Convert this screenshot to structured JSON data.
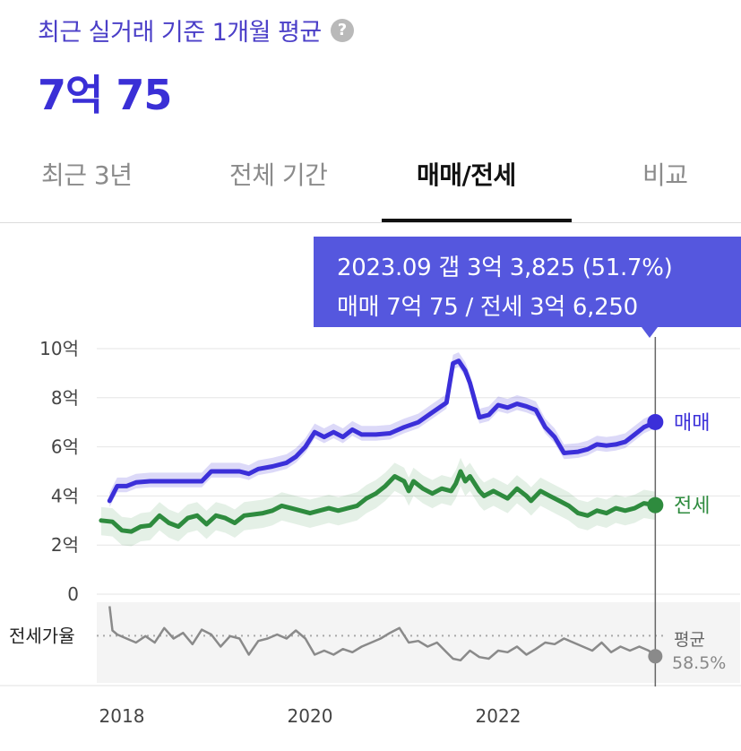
{
  "header": {
    "title": "최근 실거래 기준 1개월 평균",
    "help_icon": "help-circle-icon",
    "price": "7억 75"
  },
  "tabs": [
    {
      "label": "최근 3년",
      "active": false
    },
    {
      "label": "전체 기간",
      "active": false
    },
    {
      "label": "매매/전세",
      "active": true
    },
    {
      "label": "비교",
      "active": false
    }
  ],
  "tooltip": {
    "line1": "2023.09  갭 3억 3,825 (51.7%)",
    "line2": "매매 7억 75 / 전세 3억 6,250"
  },
  "colors": {
    "sale": "#3b2fd9",
    "jeonse": "#2e8b3e",
    "ratio": "#8a8a8a",
    "accent": "#5557de"
  },
  "chart_data": {
    "type": "line",
    "yticks": [
      "10억",
      "8억",
      "6억",
      "4억",
      "2억",
      "0"
    ],
    "ytick_values": [
      10,
      8,
      6,
      4,
      2,
      0
    ],
    "xticks": [
      "2018",
      "2020",
      "2022"
    ],
    "ylim": [
      0,
      10
    ],
    "xlim": [
      2017.85,
      2023.75
    ],
    "series": [
      {
        "name": "매매",
        "color": "#3b2fd9",
        "points": [
          [
            2017.87,
            3.8
          ],
          [
            2017.95,
            4.4
          ],
          [
            2018.05,
            4.4
          ],
          [
            2018.15,
            4.55
          ],
          [
            2018.3,
            4.6
          ],
          [
            2018.5,
            4.6
          ],
          [
            2018.7,
            4.6
          ],
          [
            2018.85,
            4.6
          ],
          [
            2018.95,
            5.0
          ],
          [
            2019.1,
            5.0
          ],
          [
            2019.25,
            5.0
          ],
          [
            2019.35,
            4.9
          ],
          [
            2019.45,
            5.1
          ],
          [
            2019.6,
            5.2
          ],
          [
            2019.75,
            5.35
          ],
          [
            2019.85,
            5.6
          ],
          [
            2019.95,
            6.0
          ],
          [
            2020.05,
            6.6
          ],
          [
            2020.15,
            6.4
          ],
          [
            2020.25,
            6.6
          ],
          [
            2020.35,
            6.4
          ],
          [
            2020.45,
            6.7
          ],
          [
            2020.55,
            6.5
          ],
          [
            2020.7,
            6.5
          ],
          [
            2020.85,
            6.55
          ],
          [
            2021.0,
            6.8
          ],
          [
            2021.15,
            7.0
          ],
          [
            2021.3,
            7.4
          ],
          [
            2021.45,
            7.8
          ],
          [
            2021.52,
            9.4
          ],
          [
            2021.58,
            9.5
          ],
          [
            2021.65,
            9.1
          ],
          [
            2021.7,
            8.6
          ],
          [
            2021.8,
            7.2
          ],
          [
            2021.9,
            7.3
          ],
          [
            2022.0,
            7.7
          ],
          [
            2022.1,
            7.6
          ],
          [
            2022.2,
            7.75
          ],
          [
            2022.3,
            7.65
          ],
          [
            2022.4,
            7.5
          ],
          [
            2022.5,
            6.8
          ],
          [
            2022.6,
            6.4
          ],
          [
            2022.7,
            5.75
          ],
          [
            2022.85,
            5.8
          ],
          [
            2022.95,
            5.9
          ],
          [
            2023.05,
            6.1
          ],
          [
            2023.15,
            6.05
          ],
          [
            2023.25,
            6.1
          ],
          [
            2023.35,
            6.2
          ],
          [
            2023.45,
            6.5
          ],
          [
            2023.55,
            6.8
          ],
          [
            2023.67,
            7.0075
          ]
        ],
        "end_label": "매매"
      },
      {
        "name": "전세",
        "color": "#2e8b3e",
        "points": [
          [
            2017.78,
            3.0
          ],
          [
            2017.9,
            2.95
          ],
          [
            2018.0,
            2.6
          ],
          [
            2018.1,
            2.55
          ],
          [
            2018.2,
            2.75
          ],
          [
            2018.3,
            2.8
          ],
          [
            2018.4,
            3.2
          ],
          [
            2018.5,
            2.9
          ],
          [
            2018.6,
            2.75
          ],
          [
            2018.7,
            3.1
          ],
          [
            2018.8,
            3.2
          ],
          [
            2018.9,
            2.85
          ],
          [
            2019.0,
            3.2
          ],
          [
            2019.1,
            3.1
          ],
          [
            2019.2,
            2.9
          ],
          [
            2019.3,
            3.2
          ],
          [
            2019.4,
            3.25
          ],
          [
            2019.5,
            3.3
          ],
          [
            2019.6,
            3.4
          ],
          [
            2019.7,
            3.6
          ],
          [
            2019.8,
            3.5
          ],
          [
            2019.9,
            3.4
          ],
          [
            2020.0,
            3.3
          ],
          [
            2020.1,
            3.4
          ],
          [
            2020.2,
            3.5
          ],
          [
            2020.3,
            3.4
          ],
          [
            2020.4,
            3.5
          ],
          [
            2020.5,
            3.6
          ],
          [
            2020.6,
            3.9
          ],
          [
            2020.7,
            4.1
          ],
          [
            2020.8,
            4.4
          ],
          [
            2020.9,
            4.8
          ],
          [
            2021.0,
            4.6
          ],
          [
            2021.05,
            4.2
          ],
          [
            2021.1,
            4.6
          ],
          [
            2021.2,
            4.3
          ],
          [
            2021.3,
            4.1
          ],
          [
            2021.4,
            4.3
          ],
          [
            2021.5,
            4.2
          ],
          [
            2021.55,
            4.5
          ],
          [
            2021.6,
            5.0
          ],
          [
            2021.65,
            4.6
          ],
          [
            2021.7,
            4.8
          ],
          [
            2021.8,
            4.2
          ],
          [
            2021.85,
            4.0
          ],
          [
            2021.95,
            4.2
          ],
          [
            2022.05,
            4.0
          ],
          [
            2022.1,
            3.9
          ],
          [
            2022.2,
            4.3
          ],
          [
            2022.3,
            4.0
          ],
          [
            2022.35,
            3.8
          ],
          [
            2022.45,
            4.2
          ],
          [
            2022.55,
            4.0
          ],
          [
            2022.65,
            3.8
          ],
          [
            2022.75,
            3.6
          ],
          [
            2022.85,
            3.3
          ],
          [
            2022.95,
            3.2
          ],
          [
            2023.05,
            3.4
          ],
          [
            2023.15,
            3.3
          ],
          [
            2023.25,
            3.5
          ],
          [
            2023.35,
            3.4
          ],
          [
            2023.45,
            3.5
          ],
          [
            2023.55,
            3.7
          ],
          [
            2023.67,
            3.625
          ]
        ],
        "end_label": "전세"
      }
    ],
    "ratio_panel": {
      "label": "전세가율",
      "avg_label": "평균",
      "avg_value": "58.5%",
      "points": [
        [
          2017.87,
          0.95
        ],
        [
          2017.9,
          0.65
        ],
        [
          2017.95,
          0.6
        ],
        [
          2018.05,
          0.55
        ],
        [
          2018.15,
          0.5
        ],
        [
          2018.25,
          0.58
        ],
        [
          2018.35,
          0.5
        ],
        [
          2018.45,
          0.68
        ],
        [
          2018.55,
          0.55
        ],
        [
          2018.65,
          0.62
        ],
        [
          2018.75,
          0.48
        ],
        [
          2018.85,
          0.66
        ],
        [
          2018.95,
          0.6
        ],
        [
          2019.05,
          0.45
        ],
        [
          2019.15,
          0.58
        ],
        [
          2019.25,
          0.55
        ],
        [
          2019.35,
          0.35
        ],
        [
          2019.45,
          0.52
        ],
        [
          2019.55,
          0.55
        ],
        [
          2019.65,
          0.6
        ],
        [
          2019.75,
          0.55
        ],
        [
          2019.85,
          0.65
        ],
        [
          2019.95,
          0.55
        ],
        [
          2020.05,
          0.35
        ],
        [
          2020.15,
          0.4
        ],
        [
          2020.25,
          0.35
        ],
        [
          2020.35,
          0.42
        ],
        [
          2020.45,
          0.38
        ],
        [
          2020.55,
          0.45
        ],
        [
          2020.65,
          0.5
        ],
        [
          2020.75,
          0.55
        ],
        [
          2020.85,
          0.62
        ],
        [
          2020.95,
          0.68
        ],
        [
          2021.05,
          0.5
        ],
        [
          2021.15,
          0.52
        ],
        [
          2021.25,
          0.45
        ],
        [
          2021.35,
          0.5
        ],
        [
          2021.45,
          0.38
        ],
        [
          2021.52,
          0.3
        ],
        [
          2021.6,
          0.28
        ],
        [
          2021.7,
          0.4
        ],
        [
          2021.8,
          0.32
        ],
        [
          2021.9,
          0.3
        ],
        [
          2022.0,
          0.4
        ],
        [
          2022.1,
          0.38
        ],
        [
          2022.2,
          0.45
        ],
        [
          2022.3,
          0.35
        ],
        [
          2022.4,
          0.42
        ],
        [
          2022.5,
          0.5
        ],
        [
          2022.6,
          0.48
        ],
        [
          2022.7,
          0.55
        ],
        [
          2022.8,
          0.5
        ],
        [
          2022.9,
          0.45
        ],
        [
          2023.0,
          0.4
        ],
        [
          2023.1,
          0.5
        ],
        [
          2023.2,
          0.38
        ],
        [
          2023.3,
          0.45
        ],
        [
          2023.4,
          0.4
        ],
        [
          2023.5,
          0.45
        ],
        [
          2023.6,
          0.4
        ],
        [
          2023.67,
          0.33
        ]
      ],
      "avg_level": 0.585
    },
    "cursor_x": 2023.67
  }
}
